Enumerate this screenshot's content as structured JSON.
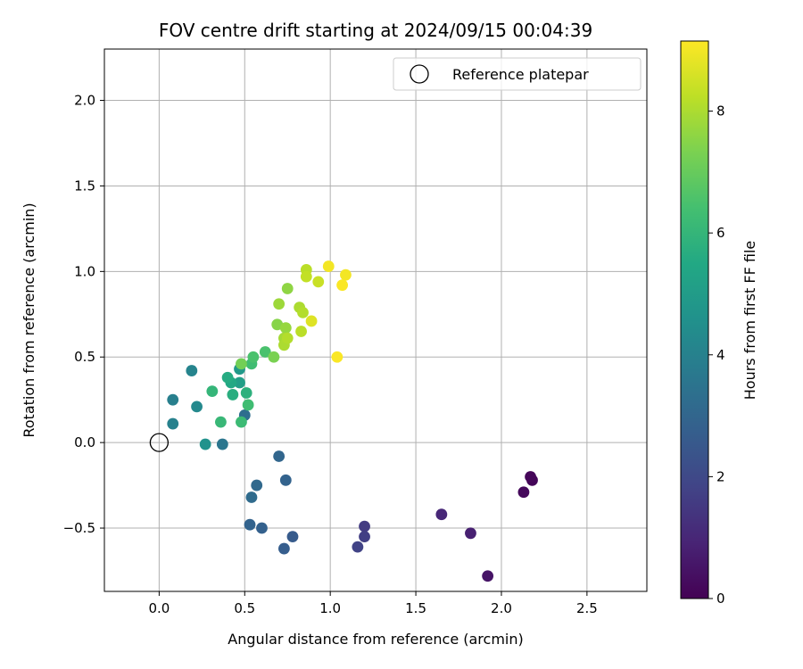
{
  "chart_data": {
    "type": "scatter",
    "title": "FOV centre drift starting at 2024/09/15 00:04:39",
    "xlabel": "Angular distance from reference (arcmin)",
    "ylabel": "Rotation from reference (arcmin)",
    "xlim": [
      -0.32,
      2.85
    ],
    "ylim": [
      -0.87,
      2.3
    ],
    "xticks": [
      0.0,
      0.5,
      1.0,
      1.5,
      2.0,
      2.5
    ],
    "xtick_labels": [
      "0.0",
      "0.5",
      "1.0",
      "1.5",
      "2.0",
      "2.5"
    ],
    "yticks": [
      -0.5,
      0.0,
      0.5,
      1.0,
      1.5,
      2.0
    ],
    "ytick_labels": [
      "−0.5",
      "0.0",
      "0.5",
      "1.0",
      "1.5",
      "2.0"
    ],
    "grid": true,
    "legend": {
      "location": "top-right",
      "entries": [
        "Reference platepar"
      ]
    },
    "reference_point": {
      "x": 0.0,
      "y": 0.0
    },
    "colorbar": {
      "label": "Hours from first FF file",
      "colormap": "viridis",
      "range": [
        0,
        9.15
      ],
      "ticks": [
        0,
        2,
        4,
        6,
        8
      ],
      "tick_labels": [
        "0",
        "2",
        "4",
        "6",
        "8"
      ]
    },
    "points": [
      {
        "x": 2.18,
        "y": -0.22,
        "c": 0.1
      },
      {
        "x": 2.17,
        "y": -0.2,
        "c": 0.15
      },
      {
        "x": 2.13,
        "y": -0.29,
        "c": 0.2
      },
      {
        "x": 1.92,
        "y": -0.78,
        "c": 0.5
      },
      {
        "x": 1.82,
        "y": -0.53,
        "c": 0.8
      },
      {
        "x": 1.65,
        "y": -0.42,
        "c": 1.0
      },
      {
        "x": 1.2,
        "y": -0.49,
        "c": 1.6
      },
      {
        "x": 1.2,
        "y": -0.55,
        "c": 1.7
      },
      {
        "x": 1.16,
        "y": -0.61,
        "c": 1.8
      },
      {
        "x": 0.78,
        "y": -0.55,
        "c": 2.6
      },
      {
        "x": 0.73,
        "y": -0.62,
        "c": 2.7
      },
      {
        "x": 0.6,
        "y": -0.5,
        "c": 2.8
      },
      {
        "x": 0.53,
        "y": -0.48,
        "c": 2.9
      },
      {
        "x": 0.74,
        "y": -0.22,
        "c": 2.9
      },
      {
        "x": 0.7,
        "y": -0.08,
        "c": 3.0
      },
      {
        "x": 0.57,
        "y": -0.25,
        "c": 3.1
      },
      {
        "x": 0.54,
        "y": -0.32,
        "c": 3.2
      },
      {
        "x": 0.5,
        "y": 0.16,
        "c": 3.3
      },
      {
        "x": 0.37,
        "y": -0.01,
        "c": 3.6
      },
      {
        "x": 0.08,
        "y": 0.25,
        "c": 3.9
      },
      {
        "x": 0.08,
        "y": 0.11,
        "c": 4.0
      },
      {
        "x": 0.19,
        "y": 0.42,
        "c": 4.1
      },
      {
        "x": 0.22,
        "y": 0.21,
        "c": 4.3
      },
      {
        "x": 0.27,
        "y": -0.01,
        "c": 4.6
      },
      {
        "x": 0.47,
        "y": 0.43,
        "c": 4.9
      },
      {
        "x": 0.47,
        "y": 0.35,
        "c": 5.1
      },
      {
        "x": 0.42,
        "y": 0.35,
        "c": 5.5
      },
      {
        "x": 0.4,
        "y": 0.38,
        "c": 5.6
      },
      {
        "x": 0.43,
        "y": 0.28,
        "c": 5.7
      },
      {
        "x": 0.51,
        "y": 0.29,
        "c": 5.8
      },
      {
        "x": 0.31,
        "y": 0.3,
        "c": 6.0
      },
      {
        "x": 0.36,
        "y": 0.12,
        "c": 6.1
      },
      {
        "x": 0.48,
        "y": 0.12,
        "c": 6.2
      },
      {
        "x": 0.52,
        "y": 0.22,
        "c": 6.3
      },
      {
        "x": 0.54,
        "y": 0.46,
        "c": 6.3
      },
      {
        "x": 0.55,
        "y": 0.5,
        "c": 6.5
      },
      {
        "x": 0.62,
        "y": 0.53,
        "c": 6.5
      },
      {
        "x": 0.48,
        "y": 0.46,
        "c": 7.2
      },
      {
        "x": 0.67,
        "y": 0.5,
        "c": 7.3
      },
      {
        "x": 0.69,
        "y": 0.69,
        "c": 7.5
      },
      {
        "x": 0.74,
        "y": 0.67,
        "c": 7.7
      },
      {
        "x": 0.75,
        "y": 0.9,
        "c": 7.6
      },
      {
        "x": 0.7,
        "y": 0.81,
        "c": 7.8
      },
      {
        "x": 0.73,
        "y": 0.61,
        "c": 7.9
      },
      {
        "x": 0.73,
        "y": 0.57,
        "c": 8.0
      },
      {
        "x": 0.75,
        "y": 0.61,
        "c": 8.1
      },
      {
        "x": 0.82,
        "y": 0.79,
        "c": 8.0
      },
      {
        "x": 0.84,
        "y": 0.76,
        "c": 8.1
      },
      {
        "x": 0.83,
        "y": 0.65,
        "c": 8.2
      },
      {
        "x": 0.86,
        "y": 1.01,
        "c": 8.2
      },
      {
        "x": 0.86,
        "y": 0.97,
        "c": 8.3
      },
      {
        "x": 0.93,
        "y": 0.94,
        "c": 8.4
      },
      {
        "x": 0.89,
        "y": 0.71,
        "c": 8.7
      },
      {
        "x": 0.99,
        "y": 1.03,
        "c": 9.0
      },
      {
        "x": 1.09,
        "y": 0.98,
        "c": 9.0
      },
      {
        "x": 1.07,
        "y": 0.92,
        "c": 9.1
      },
      {
        "x": 1.04,
        "y": 0.5,
        "c": 9.1
      }
    ]
  }
}
